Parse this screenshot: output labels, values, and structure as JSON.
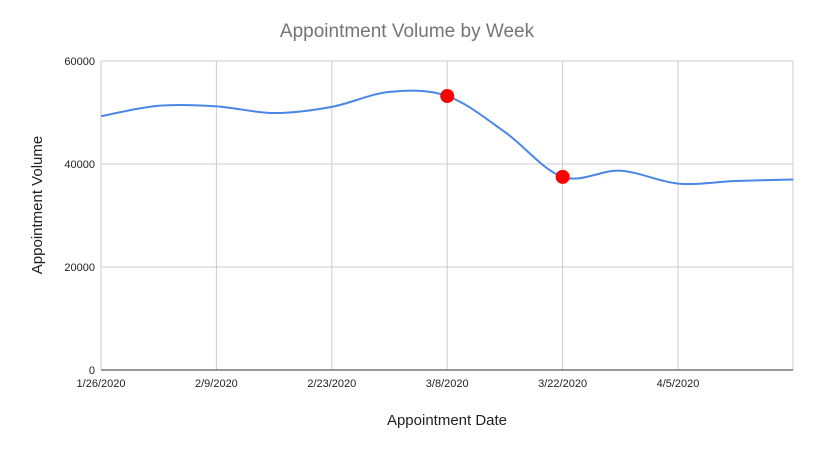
{
  "chart_data": {
    "type": "line",
    "title": "Appointment Volume by Week",
    "xlabel": "Appointment Date",
    "ylabel": "Appointment Volume",
    "ylim": [
      0,
      60000
    ],
    "y_ticks": [
      "0",
      "20000",
      "40000",
      "60000"
    ],
    "y_tick_values": [
      0,
      20000,
      40000,
      60000
    ],
    "x_tick_labels": [
      "1/26/2020",
      "2/9/2020",
      "2/23/2020",
      "3/8/2020",
      "3/22/2020",
      "4/5/2020"
    ],
    "x": [
      "1/26/2020",
      "2/2/2020",
      "2/9/2020",
      "2/16/2020",
      "2/23/2020",
      "3/1/2020",
      "3/8/2020",
      "3/15/2020",
      "3/22/2020",
      "3/29/2020",
      "4/5/2020",
      "4/12/2020",
      "4/19/2020"
    ],
    "series": [
      {
        "color": "#4a86e8",
        "values": [
          49300,
          51300,
          51200,
          49900,
          51100,
          54000,
          53200,
          46200,
          37500,
          38700,
          36200,
          36700,
          37000
        ]
      }
    ],
    "highlighted_points": [
      {
        "x": "3/8/2020",
        "value": 53200,
        "color": "#ff0000"
      },
      {
        "x": "3/22/2020",
        "value": 37500,
        "color": "#ff0000"
      }
    ],
    "grid": true,
    "legend": "none"
  }
}
